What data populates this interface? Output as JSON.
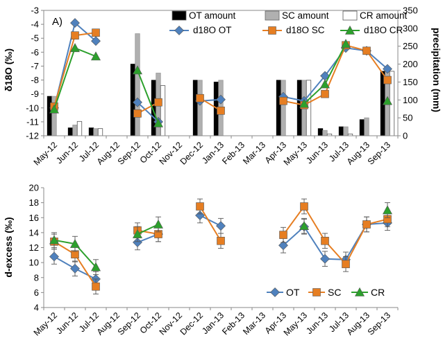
{
  "chart_data": [
    {
      "type": "bar+line",
      "panel_label": "A)",
      "categories": [
        "May-12",
        "Jun-12",
        "Jul-12",
        "Aug-12",
        "Sep-12",
        "Oct-12",
        "Nov-12",
        "Dec-12",
        "Jan-13",
        "Feb-13",
        "Mar-13",
        "Apr-13",
        "May-13",
        "Jun-13",
        "Jul-13",
        "Aug-13",
        "Sep-13"
      ],
      "ylabel_left": "δ18O (‰)",
      "ylabel_right": "precipitation  (mm)",
      "ylim_left": [
        -12,
        -3
      ],
      "yticks_left": [
        -3,
        -4,
        -5,
        -6,
        -7,
        -8,
        -9,
        -10,
        -11,
        -12
      ],
      "ylim_right": [
        0,
        350
      ],
      "yticks_right": [
        0,
        50,
        100,
        150,
        200,
        250,
        300,
        350
      ],
      "legend_placement": "top-right",
      "bar_series": [
        {
          "name": "OT amount",
          "color": "#000000",
          "values": [
            110,
            22,
            22,
            null,
            200,
            155,
            null,
            155,
            150,
            null,
            null,
            155,
            155,
            20,
            25,
            45,
            180
          ]
        },
        {
          "name": "SC amount",
          "color": "#b0b0b0",
          "values": [
            110,
            30,
            20,
            null,
            285,
            175,
            null,
            155,
            155,
            null,
            null,
            155,
            155,
            15,
            25,
            50,
            180
          ]
        },
        {
          "name": "CR amount",
          "color": "#ffffff",
          "values": [
            null,
            40,
            20,
            null,
            null,
            140,
            null,
            null,
            null,
            null,
            null,
            null,
            155,
            5,
            5,
            null,
            180
          ]
        }
      ],
      "line_series": [
        {
          "name": "d18O OT",
          "color": "#4f81bd",
          "marker": "diamond",
          "values": [
            -10.0,
            -3.9,
            -5.2,
            null,
            -9.6,
            -11.0,
            null,
            -9.5,
            -9.4,
            null,
            null,
            -9.2,
            -9.5,
            -7.7,
            -5.7,
            -5.9,
            -7.2
          ]
        },
        {
          "name": "d18O SC",
          "color": "#e67e22",
          "marker": "square",
          "values": [
            -9.9,
            -4.8,
            -4.6,
            null,
            -10.4,
            -9.6,
            null,
            -9.3,
            -10.2,
            null,
            null,
            -9.5,
            -9.8,
            -9.0,
            -5.5,
            -5.9,
            -8.0
          ]
        },
        {
          "name": "d18O CR",
          "color": "#2ca02c",
          "marker": "triangle",
          "values": [
            -10.1,
            -5.7,
            -6.3,
            null,
            -7.3,
            -11.1,
            null,
            null,
            null,
            null,
            null,
            null,
            -9.7,
            -8.3,
            -5.4,
            null,
            -9.5
          ]
        }
      ]
    },
    {
      "type": "line",
      "categories": [
        "May-12",
        "Jun-12",
        "Jul-12",
        "Aug-12",
        "Sep-12",
        "Oct-12",
        "Nov-12",
        "Dec-12",
        "Jan-13",
        "Feb-13",
        "Mar-13",
        "Apr-13",
        "May-13",
        "Jun-13",
        "Jul-13",
        "Aug-13",
        "Sep-13"
      ],
      "ylabel": "d-excess (‰)",
      "ylim": [
        4,
        20
      ],
      "yticks": [
        4,
        6,
        8,
        10,
        12,
        14,
        16,
        18,
        20
      ],
      "legend_placement": "bottom-right",
      "error_bar": 1,
      "series": [
        {
          "name": "OT",
          "color": "#4f81bd",
          "marker": "diamond",
          "values": [
            10.8,
            9.2,
            7.8,
            null,
            12.7,
            13.8,
            null,
            16.3,
            14.9,
            null,
            null,
            12.3,
            14.8,
            10.5,
            10.4,
            15.1,
            15.3
          ]
        },
        {
          "name": "SC",
          "color": "#e67e22",
          "marker": "square",
          "values": [
            12.8,
            11.1,
            6.8,
            null,
            14.3,
            13.8,
            null,
            17.5,
            12.9,
            null,
            null,
            13.7,
            17.5,
            12.9,
            9.8,
            15.1,
            15.8
          ]
        },
        {
          "name": "CR",
          "color": "#2ca02c",
          "marker": "triangle",
          "values": [
            13.0,
            12.5,
            9.4,
            null,
            13.8,
            15.1,
            null,
            null,
            null,
            null,
            null,
            null,
            14.9,
            null,
            null,
            null,
            17.0
          ]
        }
      ]
    }
  ]
}
